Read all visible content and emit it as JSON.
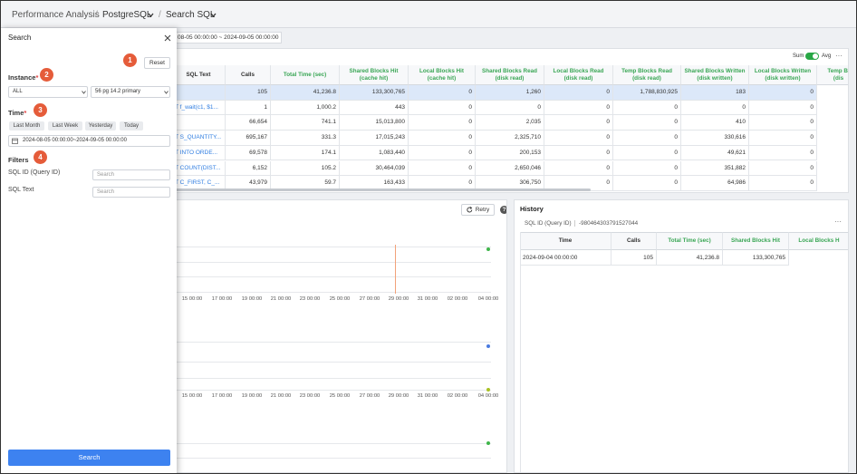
{
  "breadcrumb": {
    "items": [
      "Performance Analysis",
      "PostgreSQL",
      "Search SQL"
    ],
    "separators": [
      "/",
      "/"
    ]
  },
  "date_range_bar": "08-05 00:00:00 ~ 2024-09-05 00:00:00",
  "search_panel": {
    "title": "Search",
    "reset": "Reset",
    "badges": [
      "1",
      "2",
      "3",
      "4"
    ],
    "instance_label": "Instance",
    "required_mark": "*",
    "instance_select": "ALL",
    "instance_value": "56 pg 14.2 primary",
    "time_label": "Time",
    "time_buttons": [
      "Last Month",
      "Last Week",
      "Yesterday",
      "Today"
    ],
    "time_range": "2024-08-05 00:00:00~2024-09-05 00:00:00",
    "filters_label": "Filters",
    "filters": [
      {
        "label": "SQL ID (Query ID)",
        "placeholder": "Search"
      },
      {
        "label": "SQL Text",
        "placeholder": "Search"
      }
    ],
    "search_button": "Search"
  },
  "sql_table": {
    "toggle": [
      "Sum",
      "Avg"
    ],
    "more": "···",
    "columns": [
      {
        "title": "SQL Text"
      },
      {
        "title": "Calls"
      },
      {
        "title": "Total Time (sec)"
      },
      {
        "title": "Shared Blocks Hit",
        "subtitle": "(cache hit)"
      },
      {
        "title": "Local Blocks Hit",
        "subtitle": "(cache hit)"
      },
      {
        "title": "Shared Blocks Read",
        "subtitle": "(disk read)"
      },
      {
        "title": "Local Blocks Read",
        "subtitle": "(disk read)"
      },
      {
        "title": "Temp Blocks Read",
        "subtitle": "(disk read)"
      },
      {
        "title": "Shared Blocks Written",
        "subtitle": "(disk written)"
      },
      {
        "title": "Local Blocks Written",
        "subtitle": "(disk written)"
      },
      {
        "title": "Temp Bl",
        "subtitle": "(dis"
      }
    ],
    "rows": [
      [
        null,
        "105",
        "41,236.8",
        "133,300,765",
        "0",
        "1,260",
        "0",
        "1,788,830,925",
        "183",
        "0"
      ],
      [
        "T f_wait(c1, $1...",
        "1",
        "1,000.2",
        "443",
        "0",
        "0",
        "0",
        "0",
        "0",
        "0"
      ],
      [
        null,
        "66,654",
        "741.1",
        "15,013,800",
        "0",
        "2,035",
        "0",
        "0",
        "410",
        "0"
      ],
      [
        "T S_QUANTITY...",
        "695,167",
        "331.3",
        "17,015,243",
        "0",
        "2,325,710",
        "0",
        "0",
        "330,616",
        "0"
      ],
      [
        "T INTO ORDE...",
        "69,578",
        "174.1",
        "1,083,440",
        "0",
        "200,153",
        "0",
        "0",
        "49,621",
        "0"
      ],
      [
        "T COUNT(DIST...",
        "6,152",
        "105.2",
        "30,464,039",
        "0",
        "2,650,046",
        "0",
        "0",
        "351,882",
        "0"
      ],
      [
        "T C_FIRST, C_...",
        "43,979",
        "59.7",
        "163,433",
        "0",
        "306,750",
        "0",
        "0",
        "64,986",
        "0"
      ]
    ]
  },
  "chart_panel": {
    "retry": "Retry",
    "help": "?",
    "x_labels_1": [
      "15 00:00",
      "17 00:00",
      "19 00:00",
      "21 00:00",
      "23 00:00",
      "25 00:00",
      "27 00:00",
      "29 00:00",
      "31 00:00",
      "02 00:00",
      "04 00:00"
    ],
    "x_labels_2": [
      "15 00:00",
      "17 00:00",
      "19 00:00",
      "21 00:00",
      "23 00:00",
      "25 00:00",
      "27 00:00",
      "29 00:00",
      "31 00:00",
      "02 00:00",
      "04 00:00"
    ]
  },
  "history": {
    "title": "History",
    "sql_id_label": "SQL ID (Query ID)",
    "sql_id": "-980464303791527044",
    "more": "···",
    "columns": [
      "Time",
      "Calls",
      "Total Time (sec)",
      "Shared Blocks Hit",
      "Local Blocks H"
    ],
    "rows": [
      [
        "2024-09-04 00:00:00",
        "105",
        "41,236.8",
        "133,300,765"
      ]
    ]
  }
}
